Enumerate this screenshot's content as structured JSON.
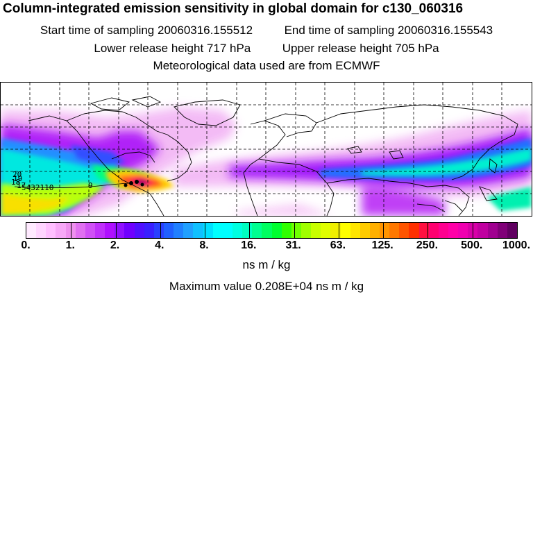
{
  "header": {
    "title": "Column-integrated emission sensitivity in global domain for c130_060316",
    "start_label": "Start time of sampling",
    "start_value": "20060316.155512",
    "end_label": "End time of sampling",
    "end_value": "20060316.155543",
    "lower_label": "Lower release height",
    "lower_value": "717 hPa",
    "upper_label": "Upper release height",
    "upper_value": "705 hPa",
    "met_line": "Meteorological data used are from ECMWF"
  },
  "map": {
    "track_labels": [
      "20",
      "19",
      "18",
      "17",
      "16",
      "15",
      "14",
      "13",
      "12",
      "11",
      "10",
      "9",
      "8",
      "7",
      "6",
      "5",
      "4",
      "3",
      "2",
      "1"
    ],
    "track_numbers_visible": "5432110",
    "track_point_9": "9"
  },
  "colorbar": {
    "tick_labels": [
      "0.",
      "1.",
      "2.",
      "4.",
      "8.",
      "16.",
      "31.",
      "63.",
      "125.",
      "250.",
      "500.",
      "1000."
    ],
    "colors": [
      "#ffeaff",
      "#ffd5ff",
      "#ffbfff",
      "#f7a8f7",
      "#ee90ee",
      "#e070f0",
      "#d050f5",
      "#c030fa",
      "#b010ff",
      "#9010ff",
      "#7000ff",
      "#5010ff",
      "#3a20ff",
      "#2a40ff",
      "#2060ff",
      "#2080ff",
      "#20a0ff",
      "#10c0ff",
      "#00e0ff",
      "#00ffff",
      "#00ffff",
      "#00ffe0",
      "#00ffc0",
      "#00ff90",
      "#00ff60",
      "#00ff30",
      "#30ff00",
      "#70ff00",
      "#a0ff00",
      "#c8ff00",
      "#e0ff00",
      "#f0f000",
      "#ffff00",
      "#ffe600",
      "#ffcc00",
      "#ffb000",
      "#ff9400",
      "#ff7800",
      "#ff5500",
      "#ff3000",
      "#ff1040",
      "#ff0070",
      "#ff0090",
      "#ff00a8",
      "#f000b0",
      "#d800a8",
      "#c000a0",
      "#a00090",
      "#800078",
      "#600060"
    ]
  },
  "footer": {
    "units": "ns m / kg",
    "max_label": "Maximum value",
    "max_value": "0.208E+04 ns m / kg"
  },
  "palette": {
    "background": "#ffffff",
    "grid": "#000000",
    "coast": "#000000"
  }
}
